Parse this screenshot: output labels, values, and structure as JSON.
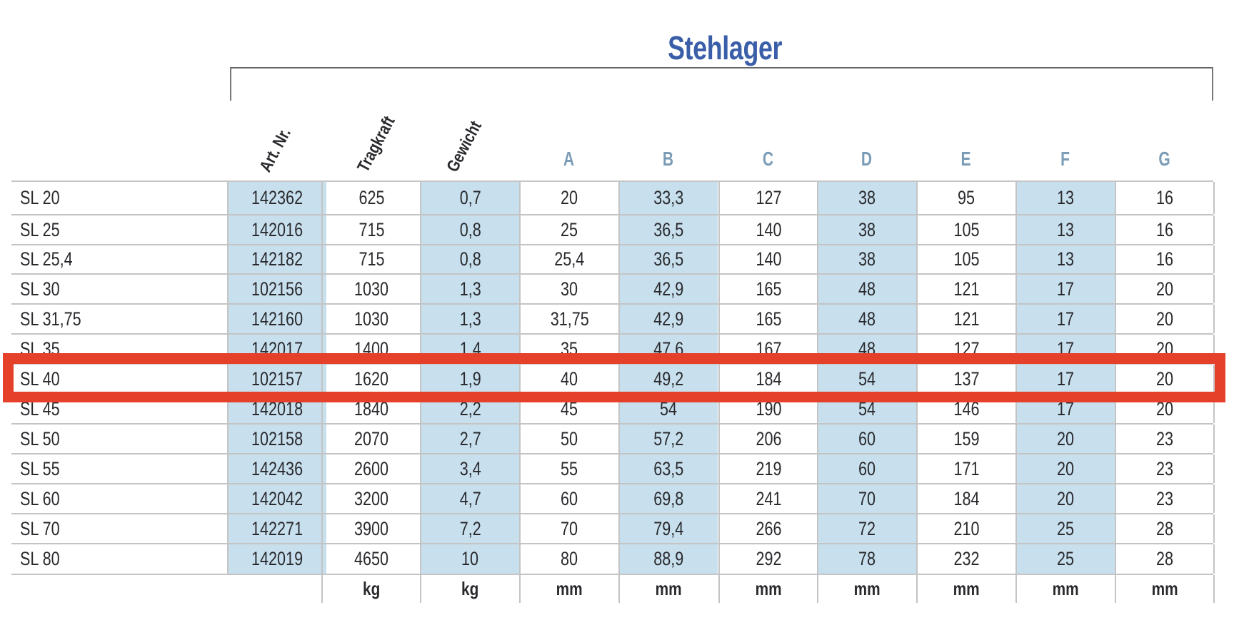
{
  "title": "Stehlager",
  "rotated_headers": [
    "Art. Nr.",
    "Tragkraft",
    "Gewicht"
  ],
  "letter_headers": [
    "A",
    "B",
    "C",
    "D",
    "E",
    "F",
    "G"
  ],
  "columns": [
    "Art. Nr.",
    "Tragkraft",
    "Gewicht",
    "A",
    "B",
    "C",
    "D",
    "E",
    "F",
    "G"
  ],
  "rows": [
    {
      "label": "SL 20",
      "values": [
        "142362",
        "625",
        "0,7",
        "20",
        "33,3",
        "127",
        "38",
        "95",
        "13",
        "16"
      ]
    },
    {
      "label": "SL 25",
      "values": [
        "142016",
        "715",
        "0,8",
        "25",
        "36,5",
        "140",
        "38",
        "105",
        "13",
        "16"
      ]
    },
    {
      "label": "SL 25,4",
      "values": [
        "142182",
        "715",
        "0,8",
        "25,4",
        "36,5",
        "140",
        "38",
        "105",
        "13",
        "16"
      ]
    },
    {
      "label": "SL 30",
      "values": [
        "102156",
        "1030",
        "1,3",
        "30",
        "42,9",
        "165",
        "48",
        "121",
        "17",
        "20"
      ]
    },
    {
      "label": "SL 31,75",
      "values": [
        "142160",
        "1030",
        "1,3",
        "31,75",
        "42,9",
        "165",
        "48",
        "121",
        "17",
        "20"
      ]
    },
    {
      "label": "SL 35",
      "values": [
        "142017",
        "1400",
        "1,4",
        "35",
        "47,6",
        "167",
        "48",
        "127",
        "17",
        "20"
      ]
    },
    {
      "label": "SL 40",
      "values": [
        "102157",
        "1620",
        "1,9",
        "40",
        "49,2",
        "184",
        "54",
        "137",
        "17",
        "20"
      ]
    },
    {
      "label": "SL 45",
      "values": [
        "142018",
        "1840",
        "2,2",
        "45",
        "54",
        "190",
        "54",
        "146",
        "17",
        "20"
      ]
    },
    {
      "label": "SL 50",
      "values": [
        "102158",
        "2070",
        "2,7",
        "50",
        "57,2",
        "206",
        "60",
        "159",
        "20",
        "23"
      ]
    },
    {
      "label": "SL 55",
      "values": [
        "142436",
        "2600",
        "3,4",
        "55",
        "63,5",
        "219",
        "60",
        "171",
        "20",
        "23"
      ]
    },
    {
      "label": "SL 60",
      "values": [
        "142042",
        "3200",
        "4,7",
        "60",
        "69,8",
        "241",
        "70",
        "184",
        "20",
        "23"
      ]
    },
    {
      "label": "SL 70",
      "values": [
        "142271",
        "3900",
        "7,2",
        "70",
        "79,4",
        "266",
        "72",
        "210",
        "25",
        "28"
      ]
    },
    {
      "label": "SL 80",
      "values": [
        "142019",
        "4650",
        "10",
        "80",
        "88,9",
        "292",
        "78",
        "232",
        "25",
        "28"
      ]
    }
  ],
  "units": [
    "",
    "kg",
    "kg",
    "mm",
    "mm",
    "mm",
    "mm",
    "mm",
    "mm",
    "mm"
  ],
  "highlight": {
    "row_label": "SL 40",
    "color": "#e5402a"
  },
  "colors": {
    "title": "#3a5ea8",
    "letter_header": "#7b9cb6",
    "shade": "#c8e0ee",
    "grid": "#c4c4c4"
  }
}
